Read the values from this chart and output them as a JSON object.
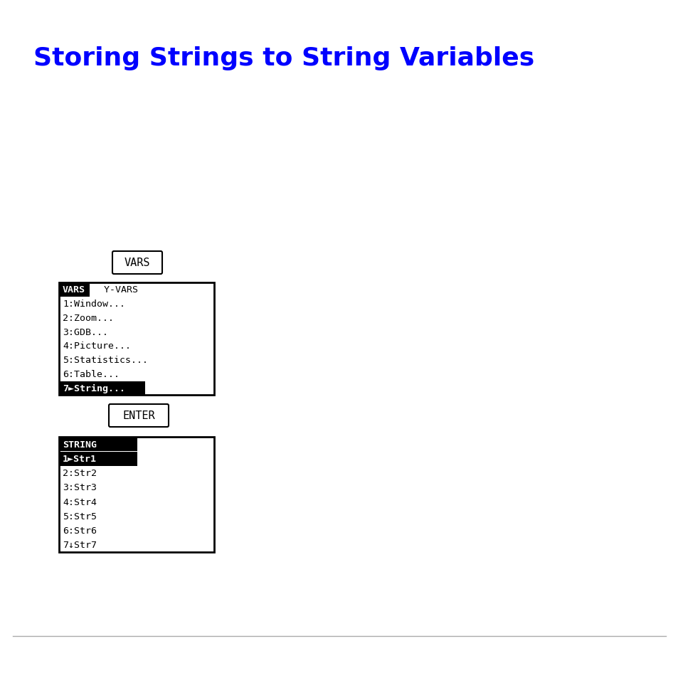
{
  "title": "Storing Strings to String Variables",
  "title_color": "#0000FF",
  "title_fontsize": 26,
  "bg_color": "#FFFFFF",
  "button1_label": "VARS",
  "button2_label": "ENTER",
  "screen1_lines": [
    "VARS  Y-VARS",
    "1:Window...",
    "2:Zoom...",
    "3:GDB...",
    "4:Picture...",
    "5:Statistics...",
    "6:Table...",
    "7►String..."
  ],
  "screen2_lines": [
    "STRING",
    "1►Str1",
    "2:Str2",
    "3:Str3",
    "4:Str4",
    "5:Str5",
    "6:Str6",
    "7↓Str7"
  ],
  "bottom_line_color": "#AAAAAA"
}
